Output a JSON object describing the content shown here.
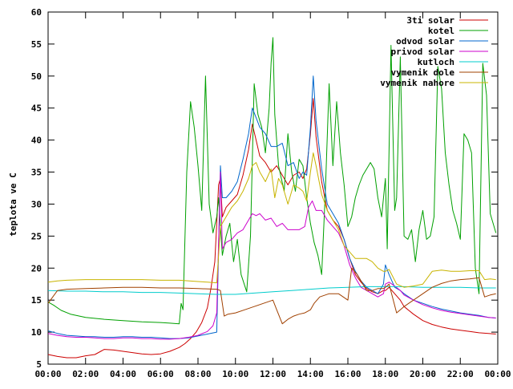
{
  "chart_data": {
    "type": "line",
    "title": "",
    "xlabel": "",
    "ylabel": "teplota ve C",
    "xlim": [
      0,
      24
    ],
    "ylim": [
      5,
      60
    ],
    "grid": false,
    "legend_position": "top-right",
    "x_ticks": [
      "00:00",
      "02:00",
      "04:00",
      "06:00",
      "08:00",
      "10:00",
      "12:00",
      "14:00",
      "16:00",
      "18:00",
      "20:00",
      "22:00",
      "00:00"
    ],
    "y_ticks": [
      5,
      10,
      15,
      20,
      25,
      30,
      35,
      40,
      45,
      50,
      55,
      60
    ],
    "series": [
      {
        "name": "3ti solar",
        "color": "#cc0000",
        "x": [
          0,
          0.5,
          1,
          1.5,
          2,
          2.5,
          3,
          3.5,
          4,
          4.5,
          5,
          5.5,
          6,
          6.5,
          7,
          7.3,
          7.6,
          7.9,
          8.2,
          8.5,
          8.7,
          8.9,
          9.0,
          9.1,
          9.2,
          9.3,
          9.5,
          9.8,
          10.1,
          10.4,
          10.7,
          10.9,
          11.1,
          11.3,
          11.6,
          11.9,
          12.2,
          12.5,
          12.8,
          13.1,
          13.4,
          13.6,
          13.8,
          14.0,
          14.15,
          14.3,
          14.6,
          14.9,
          15.2,
          15.5,
          15.8,
          16.1,
          16.4,
          16.7,
          17.0,
          17.3,
          17.6,
          17.9,
          18.0,
          18.2,
          18.5,
          18.8,
          19.0,
          19.5,
          20,
          20.5,
          21,
          21.5,
          22,
          22.5,
          23,
          23.5,
          23.9
        ],
        "y": [
          6.5,
          6.2,
          6.0,
          6.0,
          6.3,
          6.5,
          7.3,
          7.2,
          7.0,
          6.8,
          6.6,
          6.5,
          6.6,
          7.0,
          7.6,
          8.2,
          9.0,
          10.0,
          11.5,
          13.8,
          17.0,
          21.0,
          27.0,
          33.0,
          34.0,
          28.0,
          29.5,
          30.5,
          31.5,
          34.5,
          38.5,
          42.5,
          40.0,
          37.5,
          36.5,
          35.0,
          36.0,
          34.5,
          33.0,
          34.5,
          35.0,
          34.0,
          35.5,
          41.0,
          46.5,
          40.5,
          33.5,
          29.0,
          27.5,
          26.5,
          24.5,
          21.5,
          19.0,
          17.8,
          16.8,
          16.3,
          16.0,
          16.5,
          16.5,
          17.0,
          16.0,
          15.0,
          14.0,
          12.8,
          11.8,
          11.2,
          10.8,
          10.5,
          10.3,
          10.1,
          9.9,
          9.8,
          9.7
        ]
      },
      {
        "name": "kotel",
        "color": "#00a000",
        "x": [
          0,
          0.3,
          0.7,
          1.2,
          2,
          3,
          4,
          5,
          6,
          6.5,
          7.0,
          7.1,
          7.2,
          7.4,
          7.6,
          7.8,
          8.0,
          8.2,
          8.4,
          8.6,
          8.8,
          9.0,
          9.1,
          9.3,
          9.5,
          9.7,
          9.9,
          10.1,
          10.3,
          10.6,
          10.8,
          11.0,
          11.2,
          11.4,
          11.6,
          11.8,
          11.9,
          12.0,
          12.1,
          12.3,
          12.6,
          12.8,
          13.0,
          13.2,
          13.4,
          13.6,
          13.8,
          14.0,
          14.2,
          14.4,
          14.6,
          14.8,
          15.0,
          15.2,
          15.4,
          15.6,
          15.8,
          16.0,
          16.2,
          16.4,
          16.6,
          16.8,
          17.0,
          17.2,
          17.4,
          17.6,
          17.8,
          18.0,
          18.1,
          18.3,
          18.5,
          18.6,
          18.8,
          19.0,
          19.2,
          19.4,
          19.6,
          19.8,
          20.0,
          20.2,
          20.4,
          20.6,
          20.8,
          21.0,
          21.2,
          21.4,
          21.6,
          21.8,
          22.0,
          22.2,
          22.4,
          22.6,
          22.8,
          23.0,
          23.2,
          23.4,
          23.6,
          23.9
        ],
        "y": [
          14.7,
          14.2,
          13.4,
          12.8,
          12.3,
          12.0,
          11.8,
          11.6,
          11.5,
          11.4,
          11.3,
          14.5,
          13.5,
          35.0,
          46.0,
          42.0,
          36.0,
          29.0,
          50.0,
          30.0,
          25.5,
          28.0,
          31.0,
          22.0,
          25.0,
          27.0,
          21.0,
          24.5,
          19.0,
          16.3,
          25.0,
          48.8,
          44.0,
          42.0,
          38.0,
          45.0,
          52.0,
          56.0,
          44.0,
          36.0,
          32.0,
          41.0,
          35.0,
          32.0,
          37.0,
          36.0,
          31.0,
          27.0,
          24.0,
          22.0,
          19.0,
          32.0,
          48.8,
          36.0,
          46.0,
          38.0,
          33.0,
          26.5,
          28.0,
          31.0,
          33.0,
          34.5,
          35.5,
          36.5,
          35.5,
          31.0,
          28.0,
          34.0,
          23.0,
          54.8,
          29.0,
          31.0,
          53.0,
          25.0,
          24.5,
          26.0,
          21.0,
          26.0,
          29.0,
          24.5,
          25.0,
          28.0,
          51.5,
          48.0,
          38.0,
          33.0,
          29.0,
          27.0,
          24.5,
          41.0,
          40.0,
          38.0,
          20.0,
          16.0,
          52.0,
          47.0,
          28.5,
          25.5
        ]
      },
      {
        "name": "odvod solar",
        "color": "#0066cc",
        "x": [
          0,
          0.5,
          1,
          1.5,
          2,
          2.5,
          3,
          3.5,
          4,
          4.5,
          5,
          5.5,
          6,
          6.5,
          7,
          7.5,
          8,
          8.5,
          9.0,
          9.2,
          9.3,
          9.5,
          9.8,
          10.1,
          10.4,
          10.7,
          10.9,
          11.1,
          11.3,
          11.6,
          11.9,
          12.2,
          12.5,
          12.8,
          13.1,
          13.4,
          13.6,
          13.8,
          14.0,
          14.15,
          14.3,
          14.6,
          14.9,
          15.2,
          15.5,
          15.8,
          16.1,
          16.4,
          16.7,
          17.0,
          17.3,
          17.6,
          17.9,
          18.0,
          18.2,
          18.5,
          18.8,
          19.0,
          19.5,
          20,
          20.5,
          21,
          21.5,
          22,
          22.5,
          23,
          23.5,
          23.9
        ],
        "y": [
          10.2,
          9.8,
          9.5,
          9.4,
          9.3,
          9.3,
          9.2,
          9.2,
          9.3,
          9.3,
          9.2,
          9.2,
          9.1,
          9.0,
          9.0,
          9.1,
          9.4,
          9.7,
          10.0,
          36.0,
          31.0,
          31.0,
          32.0,
          33.5,
          37.0,
          41.0,
          45.0,
          43.5,
          42.0,
          41.0,
          39.0,
          39.0,
          39.5,
          36.0,
          36.5,
          34.0,
          35.0,
          34.5,
          42.0,
          50.0,
          43.0,
          35.5,
          30.0,
          28.5,
          27.0,
          24.5,
          21.5,
          19.5,
          18.0,
          17.0,
          16.5,
          16.0,
          17.5,
          20.5,
          19.0,
          17.0,
          16.5,
          16.0,
          15.0,
          14.5,
          14.0,
          13.6,
          13.3,
          13.0,
          12.8,
          12.6,
          12.3,
          12.2
        ]
      },
      {
        "name": "privod solar",
        "color": "#cc00cc",
        "x": [
          0,
          0.5,
          1,
          1.5,
          2,
          2.5,
          3,
          3.5,
          4,
          4.5,
          5,
          5.5,
          6,
          6.5,
          7,
          7.5,
          8,
          8.5,
          8.8,
          9.0,
          9.2,
          9.3,
          9.5,
          9.8,
          10.1,
          10.4,
          10.7,
          10.9,
          11.1,
          11.3,
          11.6,
          11.9,
          12.2,
          12.5,
          12.8,
          13.1,
          13.4,
          13.7,
          13.9,
          14.1,
          14.3,
          14.6,
          14.9,
          15.2,
          15.5,
          15.8,
          16.1,
          16.4,
          16.7,
          17.0,
          17.3,
          17.6,
          17.9,
          18.0,
          18.2,
          18.5,
          18.8,
          19.0,
          19.5,
          20,
          20.5,
          21,
          21.5,
          22,
          22.5,
          23,
          23.5,
          23.9
        ],
        "y": [
          9.8,
          9.5,
          9.3,
          9.2,
          9.2,
          9.1,
          9.0,
          9.0,
          9.1,
          9.1,
          9.0,
          9.0,
          8.9,
          8.9,
          9.0,
          9.2,
          9.5,
          10.1,
          11.0,
          13.0,
          35.0,
          23.0,
          24.0,
          24.5,
          25.5,
          26.0,
          27.5,
          28.5,
          28.2,
          28.5,
          27.5,
          27.8,
          26.5,
          27.0,
          26.0,
          26.0,
          26.0,
          26.5,
          29.5,
          30.5,
          29.0,
          29.0,
          27.5,
          26.5,
          25.5,
          23.5,
          20.5,
          18.5,
          17.0,
          16.5,
          16.0,
          15.5,
          16.0,
          17.5,
          17.8,
          17.2,
          16.5,
          15.8,
          15.0,
          14.3,
          13.8,
          13.4,
          13.1,
          12.9,
          12.7,
          12.5,
          12.3,
          12.2
        ]
      },
      {
        "name": "kutloch",
        "color": "#00cccc",
        "x": [
          0,
          1,
          2,
          3,
          4,
          5,
          6,
          7,
          8,
          9,
          10,
          11,
          12,
          13,
          14,
          15,
          16,
          17,
          18,
          19,
          20,
          21,
          22,
          23,
          23.9
        ],
        "y": [
          16.5,
          16.4,
          16.4,
          16.3,
          16.3,
          16.2,
          16.2,
          16.1,
          16.0,
          15.9,
          15.9,
          16.1,
          16.3,
          16.5,
          16.7,
          16.9,
          17.0,
          17.1,
          17.1,
          17.1,
          17.0,
          17.0,
          17.0,
          16.9,
          16.9
        ]
      },
      {
        "name": "vymenik dole",
        "color": "#a04000",
        "x": [
          0,
          0.5,
          1,
          2,
          3,
          4,
          5,
          6,
          7,
          8,
          9,
          9.2,
          9.4,
          9.6,
          10,
          10.5,
          11,
          11.5,
          12,
          12.2,
          12.5,
          12.8,
          13.1,
          13.4,
          13.7,
          14.0,
          14.2,
          14.5,
          15.0,
          15.5,
          16.0,
          16.2,
          16.5,
          16.8,
          17.0,
          17.3,
          17.6,
          17.9,
          18.0,
          18.2,
          18.6,
          19.0,
          19.5,
          20,
          20.5,
          21,
          21.5,
          22,
          22.5,
          23,
          23.3,
          23.6,
          23.9
        ],
        "y": [
          14.5,
          16.5,
          16.7,
          16.8,
          16.9,
          17.0,
          17.0,
          16.9,
          16.9,
          16.8,
          16.7,
          16.5,
          12.5,
          12.8,
          13.0,
          13.5,
          14.0,
          14.5,
          15.0,
          13.5,
          11.3,
          12.0,
          12.5,
          12.8,
          13.0,
          13.5,
          14.5,
          15.5,
          16.0,
          16.0,
          15.0,
          20.0,
          19.0,
          17.5,
          16.5,
          16.5,
          16.8,
          16.8,
          17.0,
          17.5,
          13.0,
          14.0,
          15.0,
          16.0,
          17.0,
          17.6,
          18.0,
          18.2,
          18.3,
          18.5,
          15.5,
          15.8,
          16.0
        ]
      },
      {
        "name": "vymenik nahore",
        "color": "#c8b400",
        "x": [
          0,
          0.5,
          1,
          2,
          3,
          4,
          5,
          6,
          7,
          8,
          8.5,
          9.0,
          9.1,
          9.2,
          9.4,
          9.6,
          9.8,
          10.1,
          10.4,
          10.7,
          10.9,
          11.1,
          11.3,
          11.6,
          11.9,
          12.1,
          12.3,
          12.5,
          12.8,
          13.1,
          13.4,
          13.6,
          13.8,
          14.0,
          14.15,
          14.3,
          14.6,
          14.9,
          15.2,
          15.5,
          15.8,
          16.1,
          16.4,
          16.7,
          17.0,
          17.3,
          17.6,
          17.9,
          18.0,
          18.2,
          18.6,
          19.0,
          19.5,
          20,
          20.5,
          21,
          21.5,
          22,
          22.5,
          23,
          23.3,
          23.6,
          23.9
        ],
        "y": [
          17.8,
          18.0,
          18.1,
          18.2,
          18.2,
          18.2,
          18.2,
          18.1,
          18.1,
          17.9,
          17.8,
          17.7,
          22.0,
          26.5,
          27.5,
          28.5,
          29.5,
          30.5,
          32.0,
          34.0,
          36.0,
          36.5,
          35.0,
          33.5,
          35.5,
          31.0,
          34.0,
          33.0,
          30.0,
          33.0,
          32.5,
          32.0,
          30.5,
          35.0,
          38.0,
          36.0,
          31.5,
          29.0,
          27.5,
          26.0,
          23.5,
          22.5,
          21.5,
          21.5,
          21.5,
          21.0,
          20.0,
          19.5,
          19.5,
          19.8,
          17.5,
          17.0,
          17.2,
          17.5,
          19.5,
          19.7,
          19.5,
          19.5,
          19.6,
          19.6,
          18.2,
          18.3,
          18.2
        ]
      }
    ]
  }
}
